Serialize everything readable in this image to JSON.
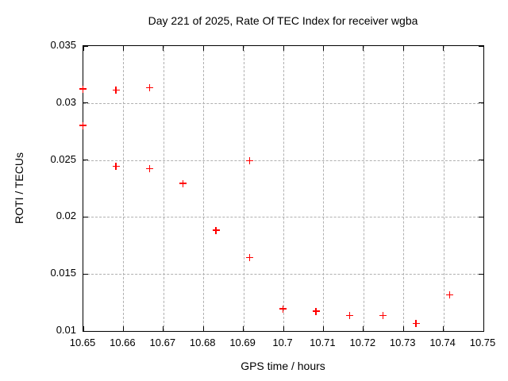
{
  "chart_data": {
    "type": "scatter",
    "title": "Day 221 of 2025, Rate Of TEC Index for receiver wgba",
    "xlabel": "GPS time / hours",
    "ylabel": "ROTI / TECUs",
    "xlim": [
      10.65,
      10.75
    ],
    "ylim": [
      0.01,
      0.035
    ],
    "grid": "dashed",
    "legend_position": "none",
    "marker_shape": "plus",
    "x_ticks": [
      {
        "v": 10.65,
        "label": "10.65"
      },
      {
        "v": 10.66,
        "label": "10.66"
      },
      {
        "v": 10.67,
        "label": "10.67"
      },
      {
        "v": 10.68,
        "label": "10.68"
      },
      {
        "v": 10.69,
        "label": "10.69"
      },
      {
        "v": 10.7,
        "label": "10.7"
      },
      {
        "v": 10.71,
        "label": "10.71"
      },
      {
        "v": 10.72,
        "label": "10.72"
      },
      {
        "v": 10.73,
        "label": "10.73"
      },
      {
        "v": 10.74,
        "label": "10.74"
      },
      {
        "v": 10.75,
        "label": "10.75"
      }
    ],
    "y_ticks": [
      {
        "v": 0.01,
        "label": "0.01"
      },
      {
        "v": 0.015,
        "label": "0.015"
      },
      {
        "v": 0.02,
        "label": "0.02"
      },
      {
        "v": 0.025,
        "label": "0.025"
      },
      {
        "v": 0.03,
        "label": "0.03"
      },
      {
        "v": 0.035,
        "label": "0.035"
      }
    ],
    "points": [
      {
        "x": 10.65,
        "y": 0.0312
      },
      {
        "x": 10.6583,
        "y": 0.0311
      },
      {
        "x": 10.6667,
        "y": 0.0313
      },
      {
        "x": 10.65,
        "y": 0.028
      },
      {
        "x": 10.6583,
        "y": 0.0244
      },
      {
        "x": 10.6667,
        "y": 0.0242
      },
      {
        "x": 10.675,
        "y": 0.0229
      },
      {
        "x": 10.6833,
        "y": 0.0188
      },
      {
        "x": 10.6917,
        "y": 0.0249
      },
      {
        "x": 10.6917,
        "y": 0.0164
      },
      {
        "x": 10.7,
        "y": 0.0119
      },
      {
        "x": 10.7083,
        "y": 0.0117
      },
      {
        "x": 10.7167,
        "y": 0.0113
      },
      {
        "x": 10.725,
        "y": 0.0113
      },
      {
        "x": 10.7333,
        "y": 0.0106
      },
      {
        "x": 10.7417,
        "y": 0.0131
      }
    ]
  },
  "colors": {
    "background": "#ffffff",
    "axis": "#000000",
    "grid": "#b0b0b0",
    "text": "#000000",
    "marker": "#ff0000"
  }
}
